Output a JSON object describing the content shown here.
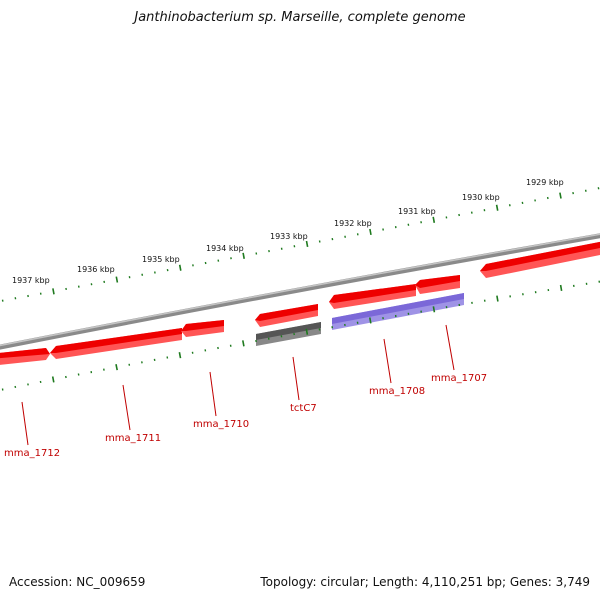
{
  "title": "Janthinobacterium sp. Marseille, complete genome",
  "footer": {
    "accession": "Accession: NC_009659",
    "info": "Topology: circular; Length: 4,110,251 bp; Genes: 3,749"
  },
  "colors": {
    "backbone": "#8a8a8a",
    "tick": "#1f7a1f",
    "gene": "#ee0000",
    "gene_highlight": "#7b68d8",
    "gene_gray": "#555555",
    "label": "#c00000"
  },
  "scale_labels": [
    "1937 kbp",
    "1936 kbp",
    "1935 kbp",
    "1934 kbp",
    "1933 kbp",
    "1932 kbp",
    "1931 kbp",
    "1930 kbp",
    "1929 kbp"
  ],
  "gene_labels": [
    "mma_1712",
    "mma_1711",
    "mma_1710",
    "tctC7",
    "mma_1708",
    "mma_1707"
  ]
}
